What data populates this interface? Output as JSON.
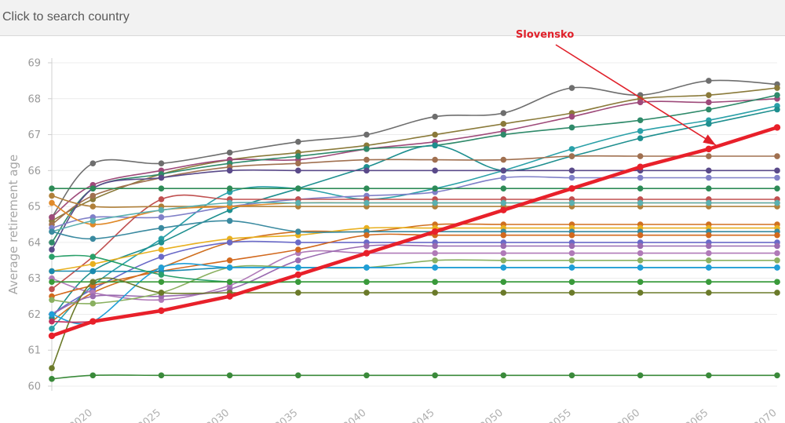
{
  "search": {
    "placeholder": "Click to search country"
  },
  "chart_data": {
    "type": "line",
    "ylabel": "Average retirement age",
    "xlabel": "",
    "ylim": [
      60,
      69
    ],
    "xlim": [
      2017,
      2070
    ],
    "yticks": [
      60,
      61,
      62,
      63,
      64,
      65,
      66,
      67,
      68,
      69
    ],
    "xticks": [
      2020,
      2025,
      2030,
      2035,
      2040,
      2045,
      2050,
      2055,
      2060,
      2065,
      2070
    ],
    "x": [
      2017,
      2020,
      2025,
      2030,
      2035,
      2040,
      2045,
      2050,
      2055,
      2060,
      2065,
      2070
    ],
    "grid": "horizontal",
    "annotation": {
      "text": "Slovensko"
    },
    "highlight": "Slovensko",
    "series": [
      {
        "color": "#6e6e6e",
        "values": [
          64.7,
          66.2,
          66.2,
          66.5,
          66.8,
          67.0,
          67.5,
          67.6,
          68.3,
          68.1,
          68.5,
          68.4
        ]
      },
      {
        "color": "#8a7a3a",
        "values": [
          64.6,
          65.2,
          65.9,
          66.3,
          66.5,
          66.7,
          67.0,
          67.3,
          67.6,
          68.0,
          68.1,
          68.3
        ]
      },
      {
        "color": "#9e4a7a",
        "values": [
          64.7,
          65.6,
          66.0,
          66.3,
          66.3,
          66.6,
          66.8,
          67.1,
          67.5,
          67.9,
          67.9,
          68.0
        ]
      },
      {
        "color": "#2f8a6a",
        "values": [
          64.0,
          65.5,
          65.9,
          66.2,
          66.4,
          66.6,
          66.7,
          67.0,
          67.2,
          67.4,
          67.7,
          68.1
        ]
      },
      {
        "color": "#2aa0a8",
        "values": [
          61.6,
          62.8,
          64.1,
          65.4,
          65.5,
          65.2,
          65.5,
          66.0,
          66.6,
          67.1,
          67.4,
          67.8
        ]
      },
      {
        "color": "#1e8f8f",
        "values": [
          61.9,
          63.2,
          64.0,
          64.9,
          65.5,
          66.1,
          66.7,
          66.0,
          66.4,
          66.9,
          67.3,
          67.7
        ]
      },
      {
        "color": "#a07050",
        "values": [
          64.5,
          65.3,
          65.8,
          66.1,
          66.2,
          66.3,
          66.3,
          66.3,
          66.4,
          66.4,
          66.4,
          66.4
        ]
      },
      {
        "color": "#5a4a8a",
        "values": [
          63.8,
          65.5,
          65.8,
          66.0,
          66.0,
          66.0,
          66.0,
          66.0,
          66.0,
          66.0,
          66.0,
          66.0
        ]
      },
      {
        "color": "#8080c8",
        "values": [
          64.4,
          64.7,
          64.7,
          65.0,
          65.2,
          65.3,
          65.4,
          65.8,
          65.8,
          65.8,
          65.8,
          65.8
        ]
      },
      {
        "color": "#2e8b57",
        "values": [
          65.5,
          65.5,
          65.5,
          65.5,
          65.5,
          65.5,
          65.5,
          65.5,
          65.5,
          65.5,
          65.5,
          65.5
        ]
      },
      {
        "color": "#c05050",
        "values": [
          62.7,
          63.6,
          65.2,
          65.2,
          65.2,
          65.2,
          65.2,
          65.2,
          65.2,
          65.2,
          65.2,
          65.2
        ]
      },
      {
        "color": "#b0803a",
        "values": [
          65.3,
          65.0,
          65.0,
          65.0,
          65.0,
          65.0,
          65.0,
          65.0,
          65.0,
          65.0,
          65.0,
          65.0
        ]
      },
      {
        "color": "#e08a2a",
        "values": [
          65.1,
          64.5,
          64.9,
          65.0,
          65.1,
          65.1,
          65.1,
          65.1,
          65.1,
          65.1,
          65.1,
          65.1
        ]
      },
      {
        "color": "#5ab0b0",
        "values": [
          64.3,
          64.6,
          64.9,
          65.1,
          65.1,
          65.1,
          65.1,
          65.1,
          65.1,
          65.1,
          65.1,
          65.1
        ]
      },
      {
        "color": "#d07020",
        "values": [
          61.8,
          62.6,
          63.3,
          64.0,
          64.3,
          64.3,
          64.5,
          64.5,
          64.5,
          64.5,
          64.5,
          64.5
        ]
      },
      {
        "color": "#e8b020",
        "values": [
          63.2,
          63.4,
          63.8,
          64.1,
          64.2,
          64.4,
          64.4,
          64.4,
          64.4,
          64.4,
          64.4,
          64.4
        ]
      },
      {
        "color": "#3a8aa0",
        "values": [
          64.3,
          64.1,
          64.4,
          64.6,
          64.3,
          64.3,
          64.3,
          64.3,
          64.3,
          64.3,
          64.3,
          64.3
        ]
      },
      {
        "color": "#6a6ac8",
        "values": [
          62.0,
          62.7,
          63.6,
          64.0,
          64.0,
          64.0,
          64.0,
          64.0,
          64.0,
          64.0,
          64.0,
          64.0
        ]
      },
      {
        "color": "#b07ab8",
        "values": [
          63.0,
          62.6,
          62.4,
          62.8,
          63.7,
          63.7,
          63.7,
          63.7,
          63.7,
          63.7,
          63.7,
          63.7
        ]
      },
      {
        "color": "#d2691e",
        "values": [
          62.5,
          62.8,
          63.2,
          63.5,
          63.8,
          64.2,
          64.2,
          64.2,
          64.2,
          64.2,
          64.2,
          64.2
        ]
      },
      {
        "color": "#9a6ab0",
        "values": [
          62.0,
          62.5,
          62.5,
          62.7,
          63.5,
          63.9,
          63.9,
          63.9,
          63.9,
          63.9,
          63.9,
          63.9
        ]
      },
      {
        "color": "#8ab060",
        "values": [
          62.4,
          62.3,
          62.6,
          63.3,
          63.3,
          63.3,
          63.5,
          63.5,
          63.5,
          63.5,
          63.5,
          63.5
        ]
      },
      {
        "color": "#1a8ab0",
        "values": [
          63.2,
          63.2,
          63.2,
          63.3,
          63.3,
          63.3,
          63.3,
          63.3,
          63.3,
          63.3,
          63.3,
          63.3
        ]
      },
      {
        "color": "#1f9fd8",
        "values": [
          62.0,
          61.8,
          63.3,
          63.3,
          63.3,
          63.3,
          63.3,
          63.3,
          63.3,
          63.3,
          63.3,
          63.3
        ]
      },
      {
        "color": "#2aa06a",
        "values": [
          63.6,
          63.6,
          63.1,
          62.9,
          62.9,
          62.9,
          62.9,
          62.9,
          62.9,
          62.9,
          62.9,
          62.9
        ]
      },
      {
        "color": "#3a9a3a",
        "values": [
          62.9,
          62.9,
          62.9,
          62.9,
          62.9,
          62.9,
          62.9,
          62.9,
          62.9,
          62.9,
          62.9,
          62.9
        ]
      },
      {
        "color": "#6b7a2a",
        "values": [
          60.5,
          62.9,
          62.6,
          62.6,
          62.6,
          62.6,
          62.6,
          62.6,
          62.6,
          62.6,
          62.6,
          62.6
        ]
      },
      {
        "color": "#3a8a3a",
        "values": [
          60.2,
          60.3,
          60.3,
          60.3,
          60.3,
          60.3,
          60.3,
          60.3,
          60.3,
          60.3,
          60.3,
          60.3
        ]
      },
      {
        "color": "#c03060",
        "values": [
          61.8,
          61.8,
          62.1,
          62.5,
          63.1,
          63.7,
          64.3,
          64.9,
          65.5,
          66.1,
          66.6,
          67.2
        ]
      },
      {
        "name": "Slovensko",
        "color": "#e8202a",
        "emphasis": true,
        "values": [
          61.4,
          61.8,
          62.1,
          62.5,
          63.1,
          63.7,
          64.3,
          64.9,
          65.5,
          66.1,
          66.6,
          67.2
        ]
      }
    ]
  }
}
